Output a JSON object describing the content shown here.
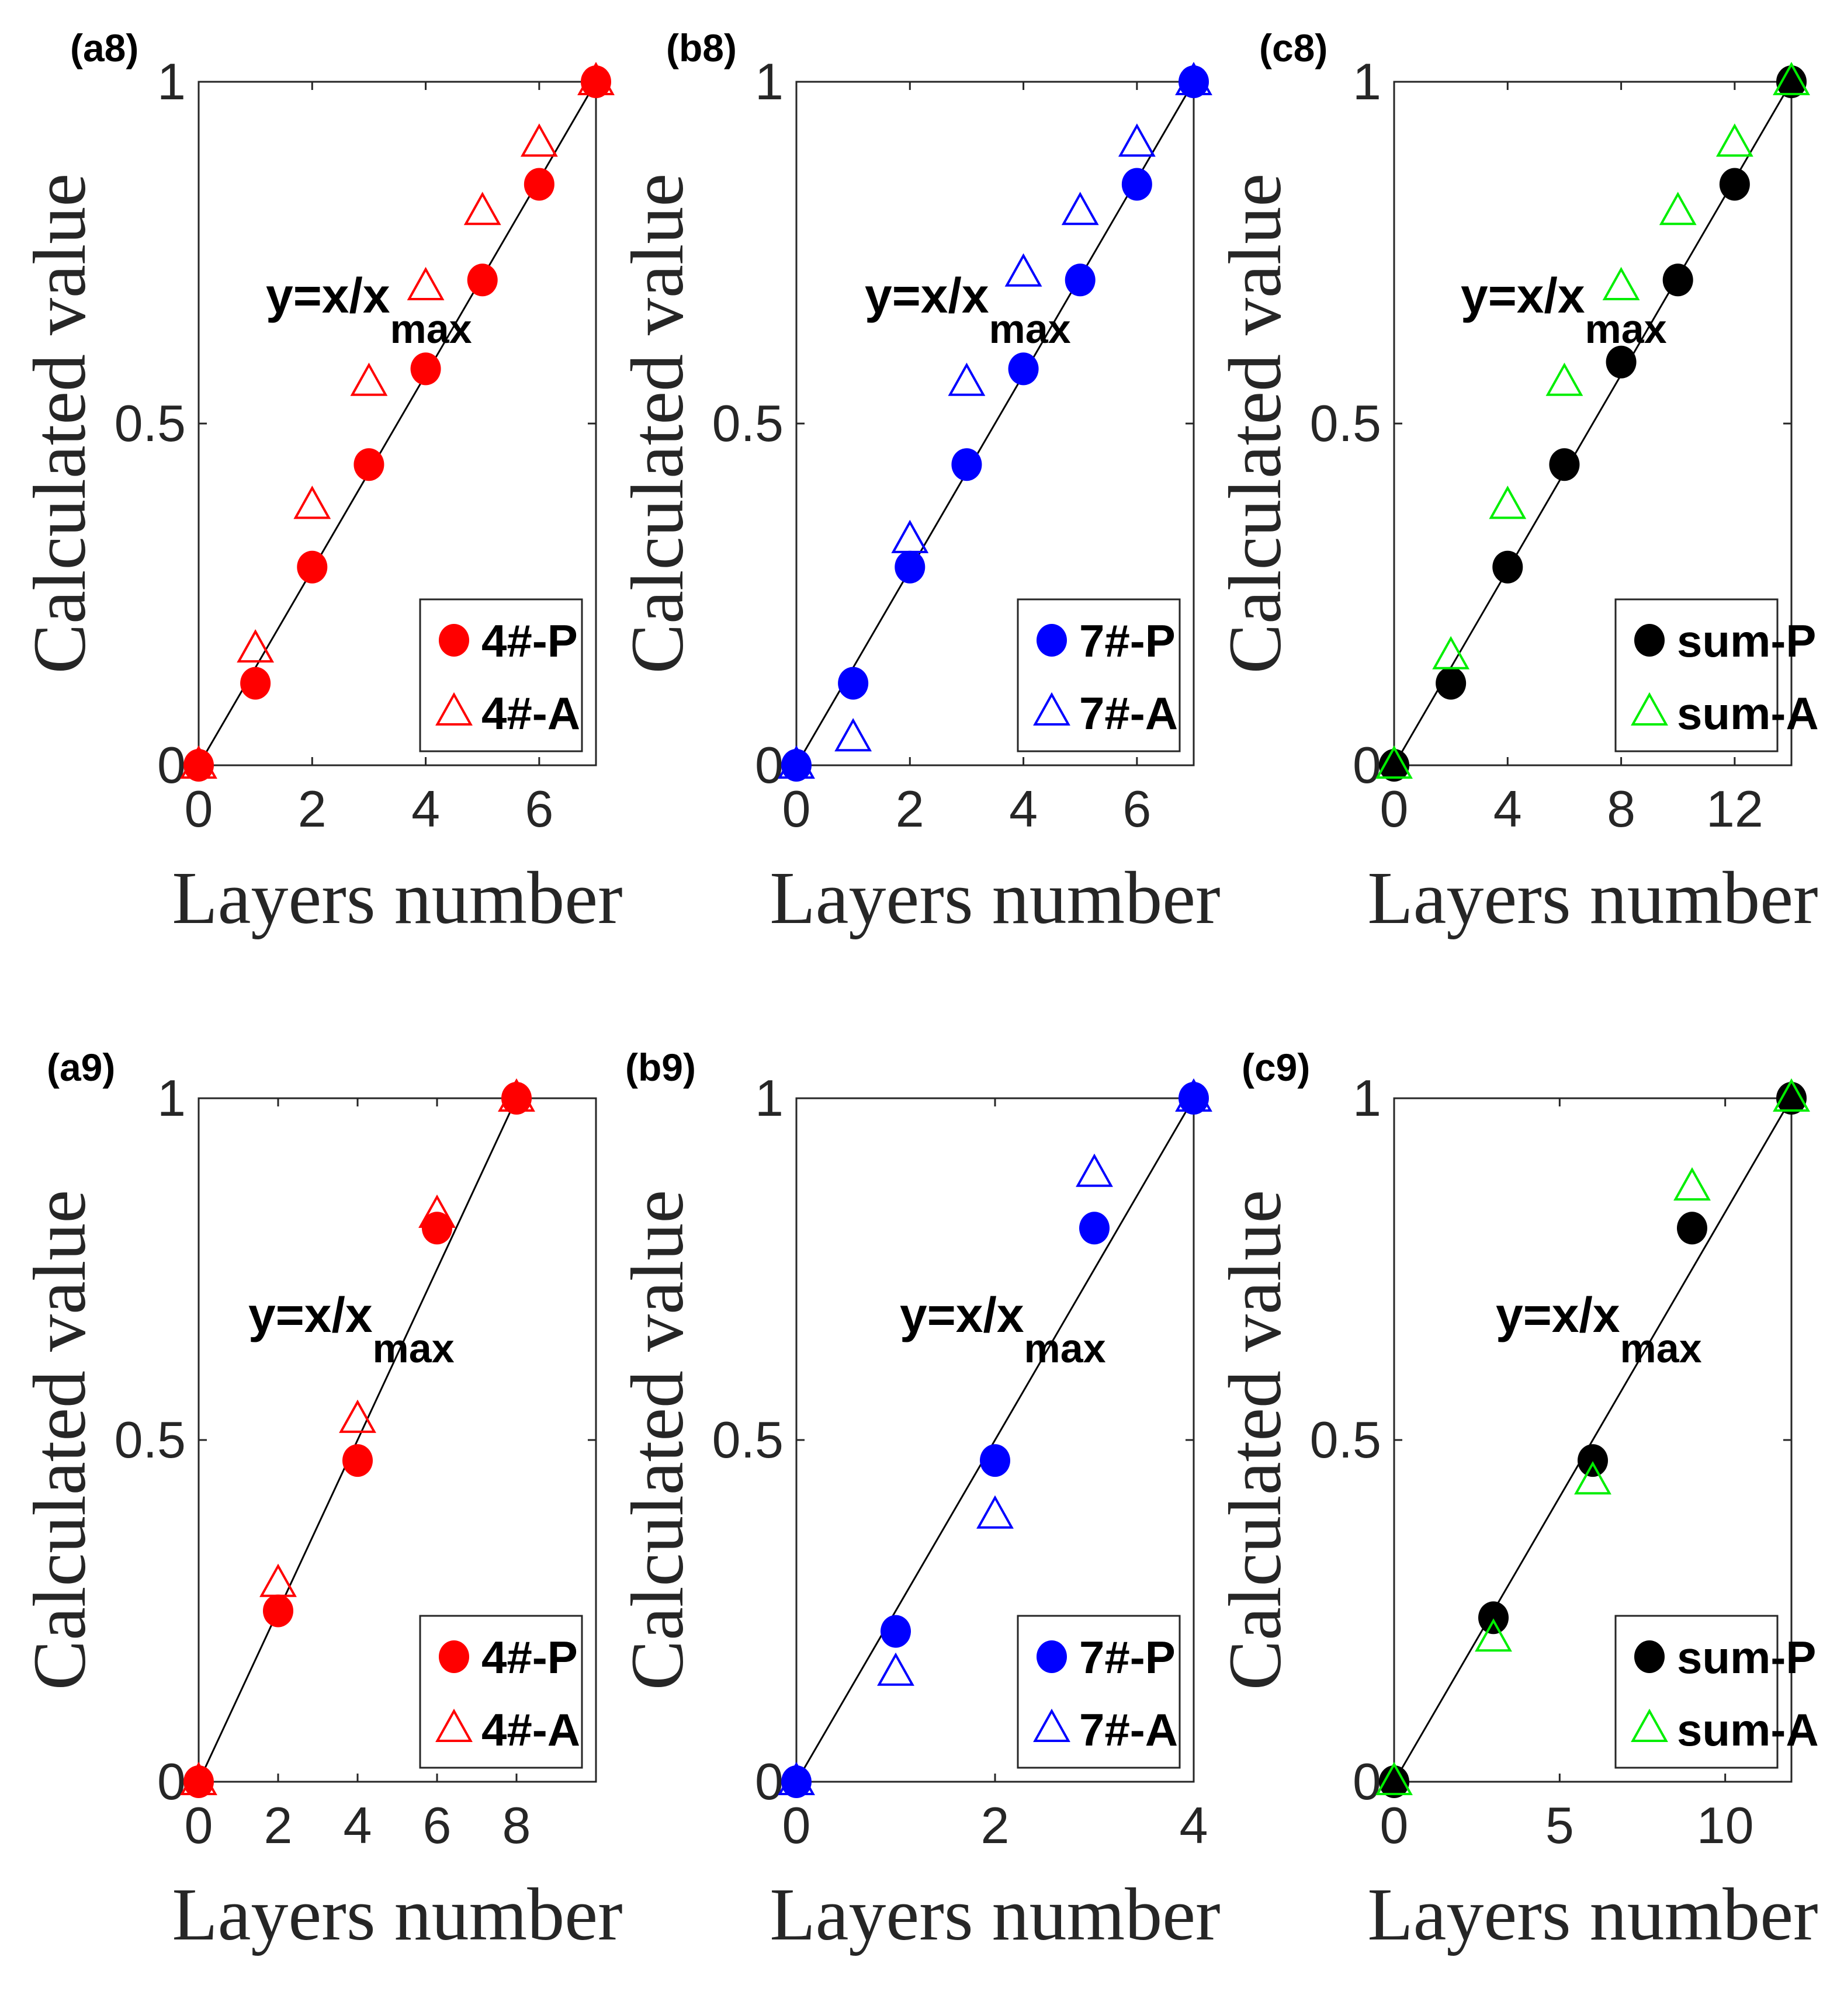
{
  "chart_data": [
    {
      "type": "scatter",
      "panel": "(a8)",
      "color": "#ff0000",
      "xlabel": "Layers number",
      "ylabel": "Calculated value",
      "xlim": [
        0,
        7
      ],
      "ylim": [
        0,
        1
      ],
      "xticks": [
        "0",
        "2",
        "4",
        "6"
      ],
      "xtick_values": [
        0,
        2,
        4,
        6
      ],
      "yticks": [
        "0",
        "0.5",
        "1"
      ],
      "ytick_values": [
        0,
        0.5,
        1
      ],
      "annotation": {
        "main": "y=x/x",
        "sub": "max"
      },
      "line": {
        "x": [
          0,
          7
        ],
        "y": [
          0,
          1
        ]
      },
      "series": [
        {
          "name": "4#-P",
          "marker": "circle",
          "x": [
            0,
            1,
            2,
            3,
            4,
            5,
            6,
            7
          ],
          "y": [
            0,
            0.12,
            0.29,
            0.44,
            0.58,
            0.71,
            0.85,
            1.0
          ]
        },
        {
          "name": "4#-A",
          "marker": "triangle",
          "x": [
            0,
            1,
            2,
            3,
            4,
            5,
            6,
            7
          ],
          "y": [
            0,
            0.17,
            0.38,
            0.56,
            0.7,
            0.81,
            0.91,
            1.0
          ]
        }
      ]
    },
    {
      "type": "scatter",
      "panel": "(b8)",
      "color": "#0000ff",
      "xlabel": "Layers number",
      "ylabel": "Calculated value",
      "xlim": [
        0,
        7
      ],
      "ylim": [
        0,
        1
      ],
      "xticks": [
        "0",
        "2",
        "4",
        "6"
      ],
      "xtick_values": [
        0,
        2,
        4,
        6
      ],
      "yticks": [
        "0",
        "0.5",
        "1"
      ],
      "ytick_values": [
        0,
        0.5,
        1
      ],
      "annotation": {
        "main": "y=x/x",
        "sub": "max"
      },
      "line": {
        "x": [
          0,
          7
        ],
        "y": [
          0,
          1
        ]
      },
      "series": [
        {
          "name": "7#-P",
          "marker": "circle",
          "x": [
            0,
            1,
            2,
            3,
            4,
            5,
            6,
            7
          ],
          "y": [
            0,
            0.12,
            0.29,
            0.44,
            0.58,
            0.71,
            0.85,
            1.0
          ]
        },
        {
          "name": "7#-A",
          "marker": "triangle",
          "x": [
            0,
            1,
            2,
            3,
            4,
            5,
            6,
            7
          ],
          "y": [
            0,
            0.04,
            0.33,
            0.56,
            0.72,
            0.81,
            0.91,
            1.0
          ]
        }
      ]
    },
    {
      "type": "scatter",
      "panel": "(c8)",
      "color": "#000000",
      "color_a": "#00ee00",
      "xlabel": "Layers number",
      "ylabel": "Calculated value",
      "xlim": [
        0,
        14
      ],
      "ylim": [
        0,
        1
      ],
      "xticks": [
        "0",
        "4",
        "8",
        "12"
      ],
      "xtick_values": [
        0,
        4,
        8,
        12
      ],
      "yticks": [
        "0",
        "0.5",
        "1"
      ],
      "ytick_values": [
        0,
        0.5,
        1
      ],
      "annotation": {
        "main": "y=x/x",
        "sub": "max"
      },
      "line": {
        "x": [
          0,
          14
        ],
        "y": [
          0,
          1
        ]
      },
      "series": [
        {
          "name": "sum-P",
          "marker": "circle",
          "x": [
            0,
            2,
            4,
            6,
            8,
            10,
            12,
            14
          ],
          "y": [
            0,
            0.12,
            0.29,
            0.44,
            0.59,
            0.71,
            0.85,
            1.0
          ]
        },
        {
          "name": "sum-A",
          "marker": "triangle",
          "x": [
            0,
            2,
            4,
            6,
            8,
            10,
            12,
            14
          ],
          "y": [
            0,
            0.16,
            0.38,
            0.56,
            0.7,
            0.81,
            0.91,
            1.0
          ]
        }
      ]
    },
    {
      "type": "scatter",
      "panel": "(a9)",
      "color": "#ff0000",
      "xlabel": "Layers number",
      "ylabel": "Calculated value",
      "xlim": [
        0,
        10
      ],
      "ylim": [
        0,
        1
      ],
      "xticks": [
        "0",
        "2",
        "4",
        "6",
        "8"
      ],
      "xtick_values": [
        0,
        2,
        4,
        6,
        8
      ],
      "yticks": [
        "0",
        "0.5",
        "1"
      ],
      "ytick_values": [
        0,
        0.5,
        1
      ],
      "annotation": {
        "main": "y=x/x",
        "sub": "max"
      },
      "line": {
        "x": [
          0,
          8
        ],
        "y": [
          0,
          1
        ]
      },
      "series": [
        {
          "name": "4#-P",
          "marker": "circle",
          "x": [
            0,
            2,
            4,
            6,
            8
          ],
          "y": [
            0,
            0.25,
            0.47,
            0.81,
            1.0
          ]
        },
        {
          "name": "4#-A",
          "marker": "triangle",
          "x": [
            0,
            2,
            4,
            6,
            8
          ],
          "y": [
            0,
            0.29,
            0.53,
            0.83,
            1.0
          ]
        }
      ]
    },
    {
      "type": "scatter",
      "panel": "(b9)",
      "color": "#0000ff",
      "xlabel": "Layers number",
      "ylabel": "Calculated value",
      "xlim": [
        0,
        4
      ],
      "ylim": [
        0,
        1
      ],
      "xticks": [
        "0",
        "2",
        "4"
      ],
      "xtick_values": [
        0,
        2,
        4
      ],
      "yticks": [
        "0",
        "0.5",
        "1"
      ],
      "ytick_values": [
        0,
        0.5,
        1
      ],
      "annotation": {
        "main": "y=x/x",
        "sub": "max"
      },
      "line": {
        "x": [
          0,
          4
        ],
        "y": [
          0,
          1
        ]
      },
      "series": [
        {
          "name": "7#-P",
          "marker": "circle",
          "x": [
            0,
            1,
            2,
            3,
            4
          ],
          "y": [
            0,
            0.22,
            0.47,
            0.81,
            1.0
          ]
        },
        {
          "name": "7#-A",
          "marker": "triangle",
          "x": [
            0,
            1,
            2,
            3,
            4
          ],
          "y": [
            0,
            0.16,
            0.39,
            0.89,
            1.0
          ]
        }
      ]
    },
    {
      "type": "scatter",
      "panel": "(c9)",
      "color": "#000000",
      "color_a": "#00ee00",
      "xlabel": "Layers number",
      "ylabel": "Calculated value",
      "xlim": [
        0,
        12
      ],
      "ylim": [
        0,
        1
      ],
      "xticks": [
        "0",
        "5",
        "10"
      ],
      "xtick_values": [
        0,
        5,
        10
      ],
      "yticks": [
        "0",
        "0.5",
        "1"
      ],
      "ytick_values": [
        0,
        0.5,
        1
      ],
      "annotation": {
        "main": "y=x/x",
        "sub": "max"
      },
      "line": {
        "x": [
          0,
          12
        ],
        "y": [
          0,
          1
        ]
      },
      "series": [
        {
          "name": "sum-P",
          "marker": "circle",
          "x": [
            0,
            3,
            6,
            9,
            12
          ],
          "y": [
            0,
            0.24,
            0.47,
            0.81,
            1.0
          ]
        },
        {
          "name": "sum-A",
          "marker": "triangle",
          "x": [
            0,
            3,
            6,
            9,
            12
          ],
          "y": [
            0,
            0.21,
            0.44,
            0.87,
            1.0
          ]
        }
      ]
    }
  ]
}
